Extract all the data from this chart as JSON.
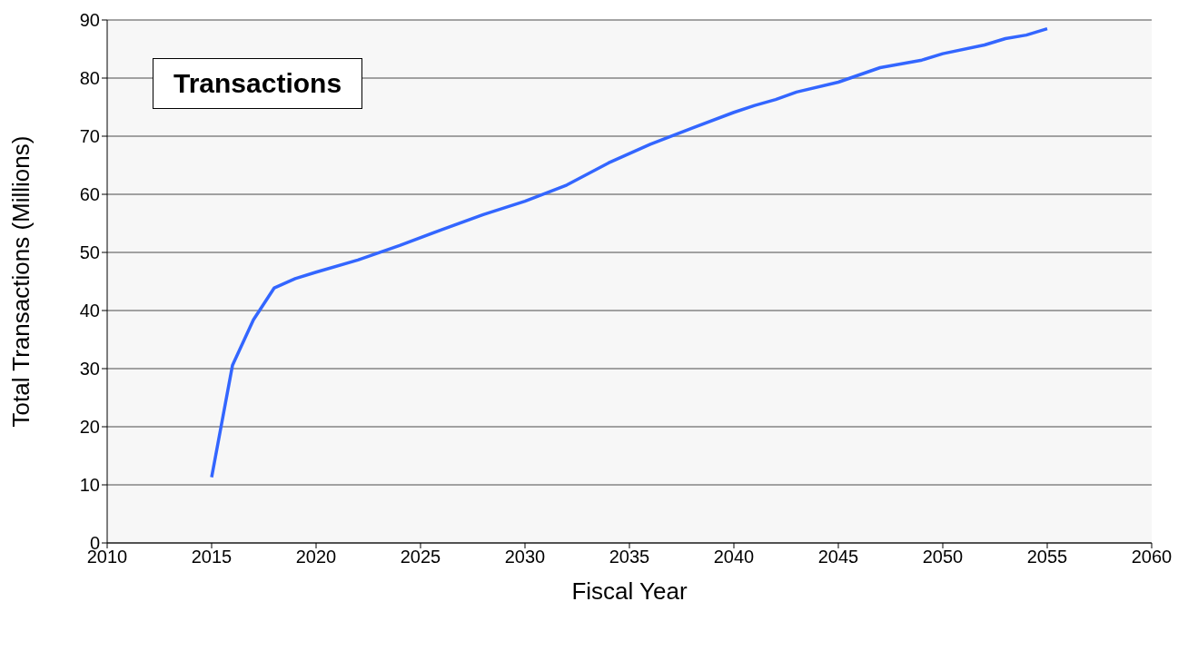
{
  "chart_data": {
    "type": "line",
    "xlabel": "Fiscal Year",
    "ylabel": "Total Transactions (Millions)",
    "annotations": [
      "Transactions"
    ],
    "x": [
      2015,
      2016,
      2017,
      2018,
      2019,
      2020,
      2022,
      2024,
      2026,
      2028,
      2030,
      2032,
      2034,
      2036,
      2038,
      2040,
      2041,
      2042,
      2043,
      2045,
      2047,
      2049,
      2050,
      2052,
      2053,
      2054,
      2055
    ],
    "series": [
      {
        "color": "#3366ff",
        "values": [
          11.3,
          30.6,
          38.4,
          43.9,
          45.5,
          46.6,
          48.7,
          51.2,
          53.9,
          56.5,
          58.8,
          61.6,
          65.4,
          68.6,
          71.4,
          74.1,
          75.3,
          76.3,
          77.6,
          79.3,
          81.8,
          83.1,
          84.2,
          85.7,
          86.8,
          87.4,
          88.5
        ]
      }
    ],
    "xlim": [
      2010,
      2060
    ],
    "xticks": [
      2010,
      2015,
      2020,
      2025,
      2030,
      2035,
      2040,
      2045,
      2050,
      2055,
      2060
    ],
    "ylim": [
      0,
      90
    ],
    "yticks": [
      0,
      10,
      20,
      30,
      40,
      50,
      60,
      70,
      80,
      90
    ],
    "grid": "y",
    "legend": false,
    "marker": "none",
    "line_style": "solid"
  }
}
